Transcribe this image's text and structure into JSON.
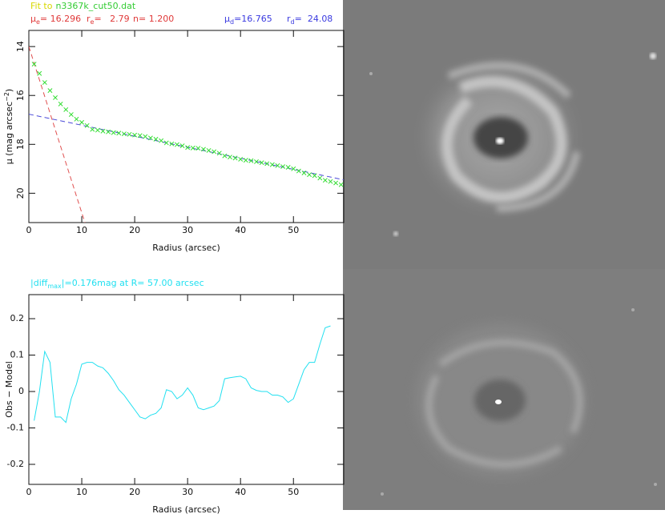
{
  "chart_data": [
    {
      "type": "line",
      "title": "Fit to",
      "title_color": "#d8d800",
      "subtitle": "n3367k_cut50.dat",
      "subtitle_color": "#33cc33",
      "annotations": [
        {
          "symbol": "μ",
          "subscript": "e",
          "text": "= 16.296",
          "color": "#e03a3a"
        },
        {
          "symbol": "r",
          "subscript": "e",
          "text": "=   2.79",
          "color": "#e03a3a"
        },
        {
          "symbol": "n",
          "text": "= 1.200",
          "color": "#e03a3a"
        },
        {
          "symbol": "μ",
          "subscript": "d",
          "text": "=16.765",
          "color": "#3a3ae0"
        },
        {
          "symbol": "r",
          "subscript": "d",
          "text": "=  24.08",
          "color": "#3a3ae0"
        }
      ],
      "xlabel": "Radius (arcsec)",
      "ylabel": "μ (mag arcsec",
      "ylabel_sup": "−2",
      "ylabel_tail": ")",
      "xlim": [
        0,
        59.5
      ],
      "xticks": [
        0,
        10,
        20,
        30,
        40,
        50
      ],
      "ylim": [
        13.34,
        21.2
      ],
      "y_inverted": true,
      "yticks": [
        14,
        16,
        18,
        20
      ],
      "series": [
        {
          "color": "#e05050",
          "dashed": true,
          "x": [
            0,
            2,
            4,
            6,
            8,
            10,
            10.6
          ],
          "values": [
            14.0,
            15.36,
            16.72,
            18.08,
            19.44,
            20.8,
            21.2
          ]
        },
        {
          "color": "#4a4ad8",
          "dashed": true,
          "x": [
            0,
            59.5
          ],
          "values": [
            16.765,
            19.45
          ]
        },
        {
          "color": "#33dd33",
          "marker": "x",
          "x": [
            1,
            2,
            3,
            4,
            5,
            6,
            7,
            8,
            9,
            10,
            11,
            12,
            13,
            14,
            15,
            16,
            17,
            18,
            19,
            20,
            21,
            22,
            23,
            24,
            25,
            26,
            27,
            28,
            29,
            30,
            31,
            32,
            33,
            34,
            35,
            36,
            37,
            38,
            39,
            40,
            41,
            42,
            43,
            44,
            45,
            46,
            47,
            48,
            49,
            50,
            51,
            52,
            53,
            54,
            55,
            56,
            57,
            58,
            59
          ],
          "values": [
            14.72,
            15.1,
            15.47,
            15.8,
            16.09,
            16.35,
            16.58,
            16.78,
            16.97,
            17.1,
            17.23,
            17.39,
            17.42,
            17.46,
            17.49,
            17.52,
            17.54,
            17.57,
            17.59,
            17.62,
            17.64,
            17.68,
            17.74,
            17.79,
            17.85,
            17.94,
            17.98,
            18.01,
            18.06,
            18.13,
            18.15,
            18.16,
            18.2,
            18.25,
            18.3,
            18.36,
            18.47,
            18.52,
            18.56,
            18.61,
            18.65,
            18.67,
            18.71,
            18.75,
            18.79,
            18.83,
            18.87,
            18.91,
            18.94,
            19.0,
            19.09,
            19.17,
            19.24,
            19.28,
            19.38,
            19.47,
            19.52,
            19.58,
            19.65
          ]
        }
      ]
    },
    {
      "type": "line",
      "title": "|diff",
      "title_sub": "max",
      "title_tail": "|=0.176mag at R= 57.00 arcsec",
      "title_color": "#22e0f0",
      "xlabel": "Radius (arcsec)",
      "ylabel": "Obs − Model",
      "xlim": [
        0,
        59.5
      ],
      "xticks": [
        0,
        10,
        20,
        30,
        40,
        50
      ],
      "ylim": [
        -0.255,
        0.266
      ],
      "yticks": [
        -0.2,
        -0.1,
        0,
        0.1,
        0.2
      ],
      "series": [
        {
          "color": "#22e0f0",
          "x": [
            1,
            2,
            3,
            4,
            5,
            6,
            7,
            8,
            9,
            10,
            11,
            12,
            13,
            14,
            15,
            16,
            17,
            18,
            19,
            20,
            21,
            22,
            23,
            24,
            25,
            26,
            27,
            28,
            29,
            30,
            31,
            32,
            33,
            34,
            35,
            36,
            37,
            38,
            39,
            40,
            41,
            42,
            43,
            44,
            45,
            46,
            47,
            48,
            49,
            50,
            51,
            52,
            53,
            54,
            55,
            56,
            57
          ],
          "values": [
            -0.08,
            0.0,
            0.11,
            0.08,
            -0.07,
            -0.07,
            -0.085,
            -0.02,
            0.02,
            0.075,
            0.08,
            0.08,
            0.07,
            0.065,
            0.05,
            0.03,
            0.005,
            -0.01,
            -0.03,
            -0.05,
            -0.07,
            -0.075,
            -0.065,
            -0.06,
            -0.045,
            0.005,
            0.0,
            -0.02,
            -0.01,
            0.01,
            -0.01,
            -0.045,
            -0.05,
            -0.045,
            -0.04,
            -0.025,
            0.035,
            0.038,
            0.04,
            0.042,
            0.035,
            0.01,
            0.003,
            0.0,
            0.0,
            -0.01,
            -0.01,
            -0.015,
            -0.03,
            -0.02,
            0.02,
            0.06,
            0.08,
            0.08,
            0.13,
            0.175,
            0.18
          ]
        }
      ]
    }
  ]
}
